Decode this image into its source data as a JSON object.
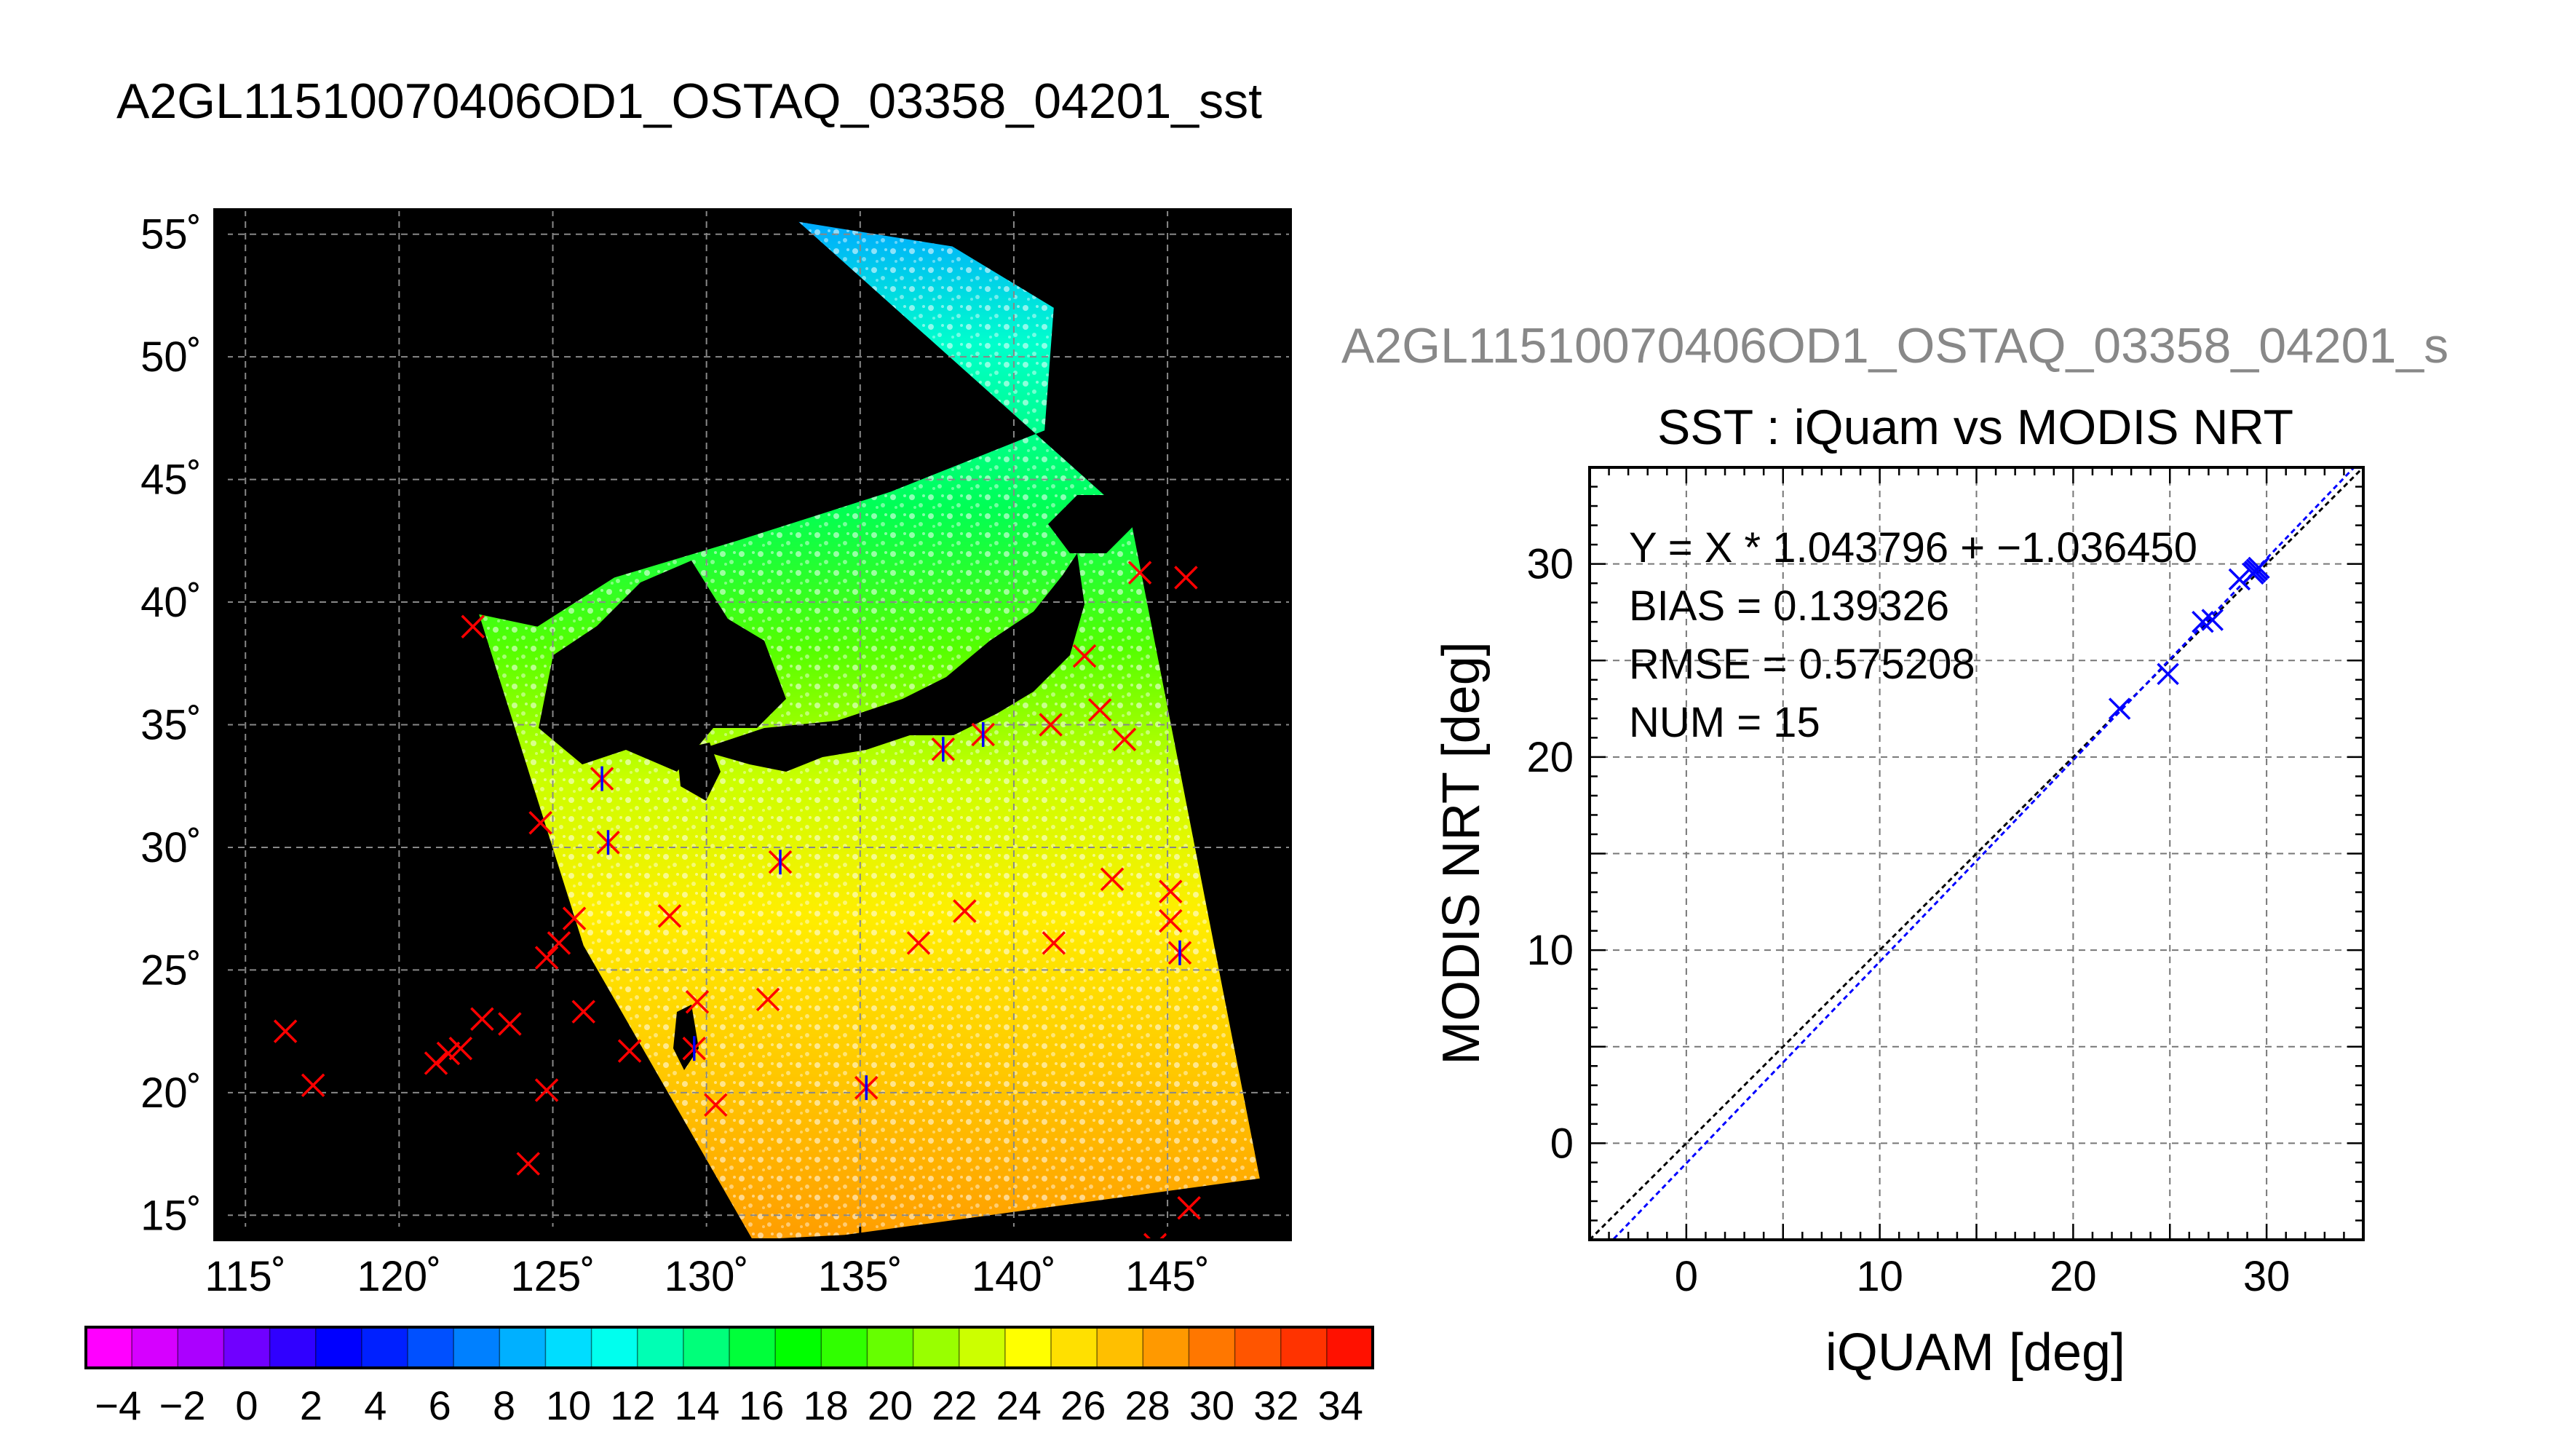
{
  "figure": {
    "title": "A2GL11510070406OD1_OSTAQ_03358_04201_sst",
    "clipped_title": "A2GL11510070406OD1_OSTAQ_03358_04201_s"
  },
  "colors": {
    "background": "#ffffff",
    "land": "#000000",
    "cloud": "#ffffff",
    "marker_red": "#ff0000",
    "marker_blue": "#0000ff",
    "fit_line": "#0000ff",
    "one_to_one": "#000000",
    "clipped_title": "#888888"
  },
  "chart_data": [
    {
      "type": "heatmap",
      "name": "sst-map",
      "xlim": [
        114,
        149
      ],
      "ylim": [
        14,
        56
      ],
      "x_ticks": [
        115,
        120,
        125,
        130,
        135,
        140,
        145
      ],
      "x_tick_labels": [
        "115˚",
        "120˚",
        "125˚",
        "130˚",
        "135˚",
        "140˚",
        "145˚"
      ],
      "y_ticks": [
        15,
        20,
        25,
        30,
        35,
        40,
        45,
        50,
        55
      ],
      "y_tick_labels": [
        "15˚",
        "20˚",
        "25˚",
        "30˚",
        "35˚",
        "40˚",
        "45˚",
        "50˚",
        "55˚"
      ],
      "grid": true,
      "swath_lonlat": [
        [
          122.6,
          39.5
        ],
        [
          124.5,
          39.0
        ],
        [
          127.0,
          41.0
        ],
        [
          131.0,
          42.5
        ],
        [
          136.0,
          44.5
        ],
        [
          141.0,
          47.0
        ],
        [
          141.3,
          52.0
        ],
        [
          138.0,
          54.5
        ],
        [
          133.0,
          55.5
        ],
        [
          143.8,
          43.4
        ],
        [
          148.0,
          16.5
        ],
        [
          134.5,
          14.2
        ],
        [
          131.5,
          14.0
        ],
        [
          126.0,
          26.0
        ]
      ],
      "markers_red_x": [
        [
          122.4,
          39.0
        ],
        [
          116.3,
          22.5
        ],
        [
          117.2,
          20.3
        ],
        [
          121.2,
          21.2
        ],
        [
          121.6,
          21.6
        ],
        [
          122.0,
          21.8
        ],
        [
          122.7,
          23.0
        ],
        [
          123.6,
          22.8
        ],
        [
          124.2,
          17.1
        ],
        [
          124.6,
          31.0
        ],
        [
          124.8,
          25.5
        ],
        [
          125.2,
          26.1
        ],
        [
          125.7,
          27.1
        ],
        [
          126.0,
          23.3
        ],
        [
          124.8,
          20.1
        ],
        [
          127.5,
          21.7
        ],
        [
          128.8,
          27.2
        ],
        [
          129.7,
          23.7
        ],
        [
          130.3,
          19.5
        ],
        [
          132.0,
          23.8
        ],
        [
          136.9,
          26.1
        ],
        [
          138.4,
          27.4
        ],
        [
          141.2,
          35.0
        ],
        [
          141.3,
          26.1
        ],
        [
          142.3,
          37.8
        ],
        [
          142.8,
          35.6
        ],
        [
          143.2,
          28.7
        ],
        [
          143.6,
          34.4
        ],
        [
          144.1,
          41.2
        ],
        [
          145.1,
          28.2
        ],
        [
          145.1,
          27.0
        ],
        [
          145.6,
          41.0
        ],
        [
          145.7,
          15.3
        ],
        [
          144.6,
          13.8
        ]
      ],
      "markers_blue_x": [
        [
          126.6,
          32.8
        ],
        [
          126.8,
          30.2
        ],
        [
          129.6,
          21.8
        ],
        [
          132.4,
          29.4
        ],
        [
          135.2,
          20.2
        ],
        [
          137.7,
          34.0
        ],
        [
          139.0,
          34.6
        ],
        [
          145.4,
          25.7
        ]
      ],
      "colorbar": {
        "min": -5,
        "max": 35,
        "tick_labels": [
          "−4",
          "−2",
          "0",
          "2",
          "4",
          "6",
          "8",
          "10",
          "12",
          "14",
          "16",
          "18",
          "20",
          "22",
          "24",
          "26",
          "28",
          "30",
          "32",
          "34"
        ],
        "colors": [
          "#ff00ff",
          "#d600ff",
          "#ab00ff",
          "#7000ff",
          "#3000ff",
          "#0000ff",
          "#0020ff",
          "#0050ff",
          "#0080ff",
          "#00b0ff",
          "#00ddff",
          "#00ffee",
          "#00ffb4",
          "#00ff7a",
          "#00ff3a",
          "#00ff00",
          "#30ff00",
          "#66ff00",
          "#99ff00",
          "#ccff00",
          "#ffff00",
          "#ffe000",
          "#ffbf00",
          "#ff9900",
          "#ff7700",
          "#ff5500",
          "#ff3300",
          "#ff1100"
        ]
      }
    },
    {
      "type": "scatter",
      "name": "sst-scatter",
      "title": "SST : iQuam vs MODIS NRT",
      "xlabel": "iQUAM [deg]",
      "ylabel": "MODIS NRT [deg]",
      "xlim": [
        -5,
        35
      ],
      "ylim": [
        -5,
        35
      ],
      "x_ticks": [
        0,
        10,
        20,
        30
      ],
      "y_ticks": [
        0,
        10,
        20,
        30
      ],
      "grid": true,
      "x": [
        22.4,
        24.9,
        26.7,
        27.2,
        28.6,
        29.4,
        29.6,
        29.5,
        29.3
      ],
      "y": [
        22.5,
        24.3,
        27.0,
        27.1,
        29.2,
        29.6,
        29.8,
        29.7,
        29.5
      ],
      "fit": {
        "slope": 1.043796,
        "intercept": -1.03645
      },
      "stats": [
        "Y = X * 1.043796 + −1.036450",
        "BIAS = 0.139326",
        "RMSE = 0.575208",
        "NUM = 15"
      ]
    }
  ]
}
